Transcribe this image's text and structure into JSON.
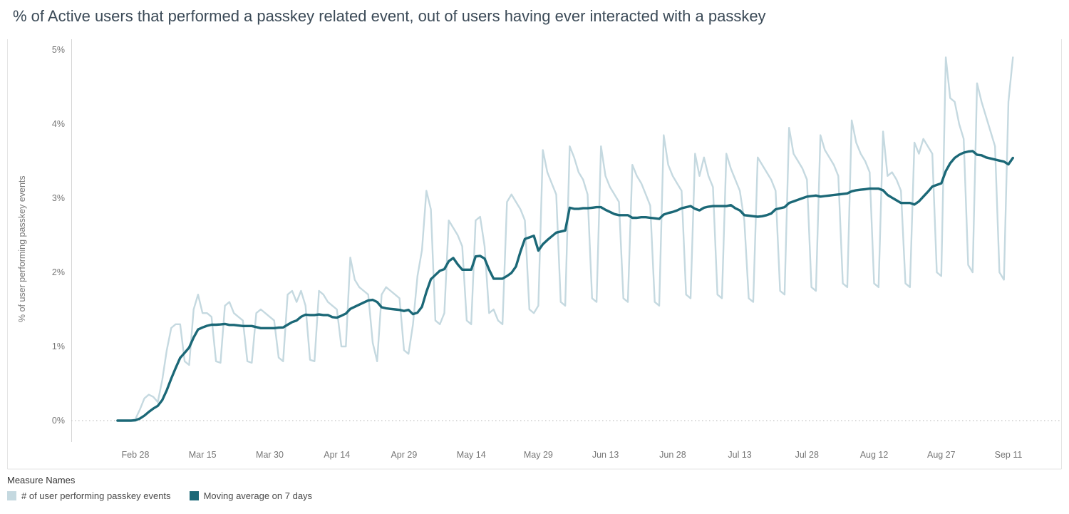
{
  "title": "% of Active users that performed a passkey related event, out of users having ever interacted with a passkey",
  "y_axis": {
    "label": "% of user performing passkey events"
  },
  "legend": {
    "title": "Measure Names",
    "entries": [
      {
        "label": "# of user performing passkey events"
      },
      {
        "label": "Moving average on 7 days"
      }
    ]
  },
  "colors": {
    "daily_series": "#c5d9e0",
    "moving_average_series": "#1b6877",
    "tick_text": "#767676",
    "grid_dotted": "#c4c4c4",
    "panel_border": "#e4e4e4",
    "axis_ruler": "#d5d5d5",
    "title_text": "#3b4a57"
  },
  "chart_data": {
    "type": "line",
    "title": "% of Active users that performed a passkey related event, out of users having ever interacted with a passkey",
    "xlabel": "",
    "ylabel": "% of user performing passkey events",
    "ylim": [
      0,
      5
    ],
    "grid": "zero-line-only",
    "legend_position": "bottom-left",
    "x_unit": "day",
    "y_ticks": [
      {
        "v": 0,
        "label": "0%"
      },
      {
        "v": 1,
        "label": "1%"
      },
      {
        "v": 2,
        "label": "2%"
      },
      {
        "v": 3,
        "label": "3%"
      },
      {
        "v": 4,
        "label": "4%"
      },
      {
        "v": 5,
        "label": "5%"
      }
    ],
    "x_ticks": [
      {
        "i": 4,
        "label": "Feb 28"
      },
      {
        "i": 19,
        "label": "Mar 15"
      },
      {
        "i": 34,
        "label": "Mar 30"
      },
      {
        "i": 49,
        "label": "Apr 14"
      },
      {
        "i": 64,
        "label": "Apr 29"
      },
      {
        "i": 79,
        "label": "May 14"
      },
      {
        "i": 94,
        "label": "May 29"
      },
      {
        "i": 109,
        "label": "Jun 13"
      },
      {
        "i": 124,
        "label": "Jun 28"
      },
      {
        "i": 139,
        "label": "Jul 13"
      },
      {
        "i": 154,
        "label": "Jul 28"
      },
      {
        "i": 169,
        "label": "Aug 12"
      },
      {
        "i": 184,
        "label": "Aug 27"
      },
      {
        "i": 199,
        "label": "Sep 11"
      }
    ],
    "series": [
      {
        "name": "# of user performing passkey events",
        "color": "#c5d9e0",
        "values": [
          0,
          0,
          0,
          0,
          0.02,
          0.15,
          0.3,
          0.35,
          0.32,
          0.25,
          0.55,
          0.95,
          1.25,
          1.3,
          1.3,
          0.8,
          0.75,
          1.5,
          1.7,
          1.45,
          1.45,
          1.4,
          0.8,
          0.78,
          1.55,
          1.6,
          1.45,
          1.4,
          1.35,
          0.8,
          0.78,
          1.45,
          1.5,
          1.45,
          1.4,
          1.35,
          0.85,
          0.8,
          1.7,
          1.75,
          1.6,
          1.75,
          1.55,
          0.82,
          0.8,
          1.75,
          1.7,
          1.6,
          1.55,
          1.5,
          1.0,
          1.0,
          2.2,
          1.9,
          1.8,
          1.75,
          1.7,
          1.05,
          0.8,
          1.7,
          1.8,
          1.75,
          1.7,
          1.65,
          0.95,
          0.9,
          1.3,
          1.95,
          2.3,
          3.1,
          2.85,
          1.35,
          1.3,
          1.45,
          2.7,
          2.6,
          2.5,
          2.35,
          1.35,
          1.3,
          2.7,
          2.75,
          2.35,
          1.45,
          1.5,
          1.35,
          1.3,
          2.95,
          3.05,
          2.95,
          2.85,
          2.7,
          1.5,
          1.45,
          1.55,
          3.65,
          3.35,
          3.2,
          3.05,
          1.6,
          1.55,
          3.7,
          3.55,
          3.35,
          3.25,
          3.05,
          1.65,
          1.6,
          3.7,
          3.3,
          3.15,
          3.05,
          2.95,
          1.65,
          1.6,
          3.45,
          3.3,
          3.2,
          3.05,
          2.9,
          1.6,
          1.55,
          3.85,
          3.45,
          3.3,
          3.2,
          3.1,
          1.7,
          1.65,
          3.6,
          3.3,
          3.55,
          3.3,
          3.15,
          1.7,
          1.65,
          3.6,
          3.4,
          3.25,
          3.1,
          2.7,
          1.65,
          1.6,
          3.55,
          3.45,
          3.35,
          3.25,
          3.1,
          1.75,
          1.7,
          3.95,
          3.6,
          3.5,
          3.4,
          3.25,
          1.8,
          1.75,
          3.85,
          3.65,
          3.55,
          3.45,
          3.3,
          1.85,
          1.8,
          4.05,
          3.75,
          3.6,
          3.5,
          3.35,
          1.85,
          1.8,
          3.9,
          3.3,
          3.35,
          3.25,
          3.1,
          1.85,
          1.8,
          3.75,
          3.6,
          3.8,
          3.7,
          3.6,
          2.0,
          1.95,
          4.9,
          4.35,
          4.3,
          4.0,
          3.8,
          2.1,
          2.0,
          4.55,
          4.3,
          4.1,
          3.9,
          3.7,
          2.0,
          1.9,
          4.3,
          4.9
        ]
      },
      {
        "name": "Moving average on 7 days",
        "color": "#1b6877",
        "derived_from": "# of user performing passkey events",
        "window": 7
      }
    ]
  }
}
